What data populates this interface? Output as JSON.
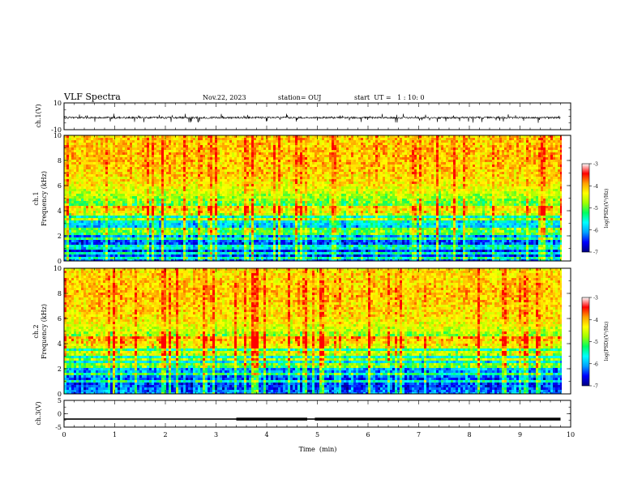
{
  "header": {
    "title": "VLF Spectra",
    "date": "Nov.22, 2023",
    "station": "station= OUJ",
    "start_ut": "start  UT =   1 : 10: 0"
  },
  "colorbar": {
    "title": "log(PSD)(V²/Hz)",
    "range": [
      -7,
      -3
    ],
    "ticks": [
      "-3",
      "-4",
      "-5",
      "-6",
      "-7"
    ],
    "stops": [
      "#000080",
      "#0000ff",
      "#00a0ff",
      "#00ffff",
      "#00ff60",
      "#a0ff00",
      "#ffff00",
      "#ffa000",
      "#ff0000",
      "#ffffff"
    ]
  },
  "chart_data": [
    {
      "type": "line",
      "name": "ch.1 waveform",
      "ylabel": "ch.1(V)",
      "ylim": [
        -10,
        10
      ],
      "yticks": [
        "10",
        "-10"
      ],
      "xlim": [
        0,
        10
      ],
      "baseline": -1,
      "note_visible": "noise band around about -1 V with spikes down to about -3 V"
    },
    {
      "type": "heatmap",
      "name": "ch.1 spectrogram",
      "ylabel": "Frequency  (kHz)",
      "channel_label": "ch.1",
      "ylim": [
        0,
        10
      ],
      "yticks": [
        "0",
        "2",
        "4",
        "6",
        "8",
        "10"
      ],
      "xlim": [
        0,
        9.8
      ],
      "profile_freq_khz": [
        0,
        0.5,
        1,
        1.5,
        2,
        2.5,
        3,
        3.5,
        4,
        4.5,
        5,
        6,
        7,
        8,
        9,
        10
      ],
      "profile_log_psd": [
        -6.2,
        -6.4,
        -6.5,
        -6.3,
        -6.0,
        -5.8,
        -5.6,
        -5.4,
        -5.1,
        -4.8,
        -4.5,
        -4.0,
        -3.8,
        -3.7,
        -3.7,
        -3.8
      ]
    },
    {
      "type": "heatmap",
      "name": "ch.2 spectrogram",
      "ylabel": "Frequency  (kHz)",
      "channel_label": "ch.2",
      "ylim": [
        0,
        10
      ],
      "yticks": [
        "0",
        "2",
        "4",
        "6",
        "8",
        "10"
      ],
      "xlim": [
        0,
        9.8
      ],
      "profile_freq_khz": [
        0,
        0.5,
        1,
        1.5,
        2,
        2.5,
        3,
        3.5,
        4,
        4.5,
        5,
        6,
        7,
        8,
        9,
        10
      ],
      "profile_log_psd": [
        -6.0,
        -6.3,
        -6.4,
        -6.1,
        -5.9,
        -5.6,
        -5.4,
        -5.2,
        -5.0,
        -4.6,
        -4.3,
        -3.9,
        -3.8,
        -3.7,
        -3.8,
        -3.9
      ]
    },
    {
      "type": "line",
      "name": "ch.3 level",
      "ylabel": "ch.3(V)",
      "ylim": [
        -5,
        5
      ],
      "yticks": [
        "5",
        "0",
        "-5"
      ],
      "xlim": [
        0,
        10
      ],
      "xlabel": "Time  (min)",
      "xticks": [
        "0",
        "1",
        "2",
        "3",
        "4",
        "5",
        "6",
        "7",
        "8",
        "9",
        "10"
      ],
      "level": -2,
      "thick_segments_min": [
        [
          3.4,
          4.8
        ],
        [
          4.95,
          9.8
        ]
      ]
    }
  ]
}
